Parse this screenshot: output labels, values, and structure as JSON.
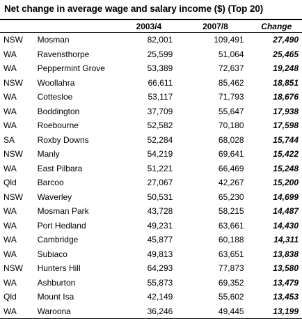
{
  "title": "Net change in average wage and salary income ($) (Top 20)",
  "columns": {
    "state": "",
    "place": "",
    "y1": "2003/4",
    "y2": "2007/8",
    "change": "Change"
  },
  "rows": [
    {
      "state": "NSW",
      "place": "Mosman",
      "y1": "82,001",
      "y2": "109,491",
      "change": "27,490"
    },
    {
      "state": "WA",
      "place": "Ravensthorpe",
      "y1": "25,599",
      "y2": "51,064",
      "change": "25,465"
    },
    {
      "state": "WA",
      "place": "Peppermint Grove",
      "y1": "53,389",
      "y2": "72,637",
      "change": "19,248"
    },
    {
      "state": "NSW",
      "place": "Woollahra",
      "y1": "66,611",
      "y2": "85,462",
      "change": "18,851"
    },
    {
      "state": "WA",
      "place": "Cottesloe",
      "y1": "53,117",
      "y2": "71,793",
      "change": "18,676"
    },
    {
      "state": "WA",
      "place": "Boddington",
      "y1": "37,709",
      "y2": "55,647",
      "change": "17,938"
    },
    {
      "state": "WA",
      "place": "Roebourne",
      "y1": "52,582",
      "y2": "70,180",
      "change": "17,598"
    },
    {
      "state": "SA",
      "place": "Roxby Downs",
      "y1": "52,284",
      "y2": "68,028",
      "change": "15,744"
    },
    {
      "state": "NSW",
      "place": "Manly",
      "y1": "54,219",
      "y2": "69,641",
      "change": "15,422"
    },
    {
      "state": "WA",
      "place": "East Pilbara",
      "y1": "51,221",
      "y2": "66,469",
      "change": "15,248"
    },
    {
      "state": "Qld",
      "place": "Barcoo",
      "y1": "27,067",
      "y2": "42,267",
      "change": "15,200"
    },
    {
      "state": "NSW",
      "place": "Waverley",
      "y1": "50,531",
      "y2": "65,230",
      "change": "14,699"
    },
    {
      "state": "WA",
      "place": "Mosman Park",
      "y1": "43,728",
      "y2": "58,215",
      "change": "14,487"
    },
    {
      "state": "WA",
      "place": "Port Hedland",
      "y1": "49,231",
      "y2": "63,661",
      "change": "14,430"
    },
    {
      "state": "WA",
      "place": "Cambridge",
      "y1": "45,877",
      "y2": "60,188",
      "change": "14,311"
    },
    {
      "state": "WA",
      "place": "Subiaco",
      "y1": "49,813",
      "y2": "63,651",
      "change": "13,838"
    },
    {
      "state": "NSW",
      "place": "Hunters Hill",
      "y1": "64,293",
      "y2": "77,873",
      "change": "13,580"
    },
    {
      "state": "WA",
      "place": "Ashburton",
      "y1": "55,873",
      "y2": "69,352",
      "change": "13,479"
    },
    {
      "state": "Qld",
      "place": "Mount Isa",
      "y1": "42,149",
      "y2": "55,602",
      "change": "13,453"
    },
    {
      "state": "WA",
      "place": "Waroona",
      "y1": "36,246",
      "y2": "49,445",
      "change": "13,199"
    }
  ]
}
